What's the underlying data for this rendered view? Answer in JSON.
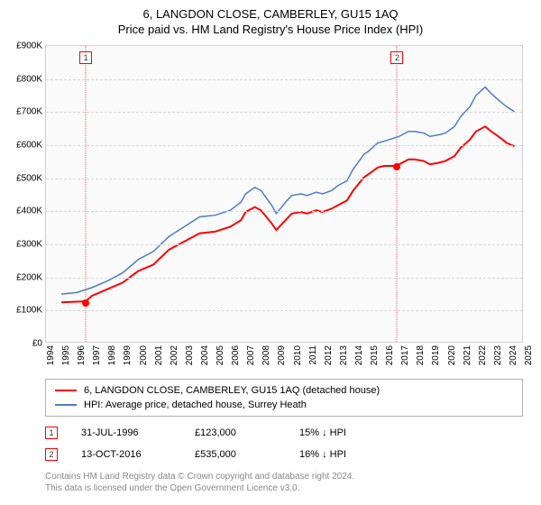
{
  "title": "6, LANGDON CLOSE, CAMBERLEY, GU15 1AQ",
  "subtitle": "Price paid vs. HM Land Registry's House Price Index (HPI)",
  "chart": {
    "background": "#fafafa",
    "grid_color": "#d8d8d8",
    "border_color": "#d0d0d0",
    "y_axis": {
      "min": 0,
      "max": 900,
      "step": 100,
      "prefix": "£",
      "suffix": "K"
    },
    "x_axis": {
      "min": 1994,
      "max": 2025,
      "step": 1
    },
    "series": [
      {
        "name": "6, LANGDON CLOSE, CAMBERLEY, GU15 1AQ (detached house)",
        "color": "#ff0000",
        "width": 2,
        "points": [
          [
            1995,
            120
          ],
          [
            1996.58,
            123
          ],
          [
            1997,
            140
          ],
          [
            1998,
            160
          ],
          [
            1999,
            180
          ],
          [
            2000,
            215
          ],
          [
            2001,
            235
          ],
          [
            2002,
            280
          ],
          [
            2003,
            305
          ],
          [
            2004,
            330
          ],
          [
            2005,
            335
          ],
          [
            2006,
            350
          ],
          [
            2006.7,
            370
          ],
          [
            2007,
            395
          ],
          [
            2007.6,
            410
          ],
          [
            2008,
            400
          ],
          [
            2008.7,
            360
          ],
          [
            2009,
            340
          ],
          [
            2009.7,
            375
          ],
          [
            2010,
            390
          ],
          [
            2010.6,
            395
          ],
          [
            2011,
            390
          ],
          [
            2011.6,
            400
          ],
          [
            2012,
            395
          ],
          [
            2012.6,
            405
          ],
          [
            2013,
            415
          ],
          [
            2013.6,
            430
          ],
          [
            2014,
            460
          ],
          [
            2014.7,
            500
          ],
          [
            2015,
            510
          ],
          [
            2015.6,
            530
          ],
          [
            2016,
            535
          ],
          [
            2016.78,
            535
          ],
          [
            2017,
            540
          ],
          [
            2017.6,
            555
          ],
          [
            2018,
            555
          ],
          [
            2018.6,
            550
          ],
          [
            2019,
            540
          ],
          [
            2019.6,
            545
          ],
          [
            2020,
            550
          ],
          [
            2020.6,
            565
          ],
          [
            2021,
            590
          ],
          [
            2021.6,
            615
          ],
          [
            2022,
            640
          ],
          [
            2022.6,
            655
          ],
          [
            2023,
            640
          ],
          [
            2023.6,
            620
          ],
          [
            2024,
            605
          ],
          [
            2024.5,
            595
          ]
        ]
      },
      {
        "name": "HPI: Average price, detached house, Surrey Heath",
        "color": "#4a7dcf",
        "width": 1.5,
        "points": [
          [
            1995,
            145
          ],
          [
            1996,
            150
          ],
          [
            1997,
            165
          ],
          [
            1998,
            185
          ],
          [
            1999,
            210
          ],
          [
            2000,
            250
          ],
          [
            2001,
            275
          ],
          [
            2002,
            320
          ],
          [
            2003,
            350
          ],
          [
            2004,
            380
          ],
          [
            2005,
            385
          ],
          [
            2006,
            400
          ],
          [
            2006.7,
            425
          ],
          [
            2007,
            450
          ],
          [
            2007.6,
            470
          ],
          [
            2008,
            460
          ],
          [
            2008.7,
            415
          ],
          [
            2009,
            390
          ],
          [
            2009.7,
            430
          ],
          [
            2010,
            445
          ],
          [
            2010.6,
            450
          ],
          [
            2011,
            445
          ],
          [
            2011.6,
            455
          ],
          [
            2012,
            450
          ],
          [
            2012.6,
            460
          ],
          [
            2013,
            475
          ],
          [
            2013.6,
            490
          ],
          [
            2014,
            525
          ],
          [
            2014.7,
            570
          ],
          [
            2015,
            580
          ],
          [
            2015.6,
            605
          ],
          [
            2016,
            610
          ],
          [
            2017,
            625
          ],
          [
            2017.6,
            640
          ],
          [
            2018,
            640
          ],
          [
            2018.6,
            635
          ],
          [
            2019,
            625
          ],
          [
            2019.6,
            630
          ],
          [
            2020,
            635
          ],
          [
            2020.6,
            655
          ],
          [
            2021,
            685
          ],
          [
            2021.6,
            715
          ],
          [
            2022,
            750
          ],
          [
            2022.6,
            775
          ],
          [
            2023,
            755
          ],
          [
            2023.6,
            730
          ],
          [
            2024,
            715
          ],
          [
            2024.5,
            700
          ]
        ]
      }
    ],
    "markers": [
      {
        "label": "1",
        "year": 1996.58,
        "value": 123
      },
      {
        "label": "2",
        "year": 2016.78,
        "value": 535
      }
    ]
  },
  "legend": [
    {
      "color": "#ff0000",
      "text": "6, LANGDON CLOSE, CAMBERLEY, GU15 1AQ (detached house)"
    },
    {
      "color": "#4a7dcf",
      "text": "HPI: Average price, detached house, Surrey Heath"
    }
  ],
  "transactions": [
    {
      "idx": "1",
      "date": "31-JUL-1996",
      "price": "£123,000",
      "pct": "15% ↓ HPI"
    },
    {
      "idx": "2",
      "date": "13-OCT-2016",
      "price": "£535,000",
      "pct": "16% ↓ HPI"
    }
  ],
  "footer_line1": "Contains HM Land Registry data © Crown copyright and database right 2024.",
  "footer_line2": "This data is licensed under the Open Government Licence v3.0."
}
